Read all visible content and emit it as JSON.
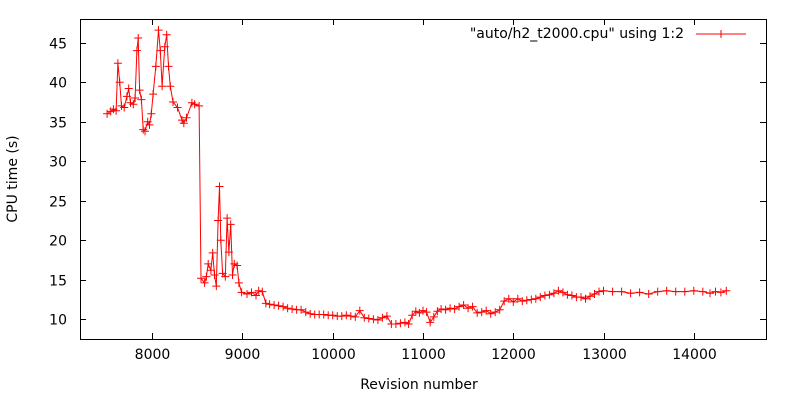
{
  "chart_data": {
    "type": "line",
    "title": "",
    "xlabel": "Revision number",
    "ylabel": "CPU time (s)",
    "xlim": [
      7200,
      14800
    ],
    "ylim": [
      7.5,
      48
    ],
    "xticks": [
      8000,
      9000,
      10000,
      11000,
      12000,
      13000,
      14000
    ],
    "yticks": [
      10,
      15,
      20,
      25,
      30,
      35,
      40,
      45
    ],
    "grid": false,
    "legend_position": "top-right",
    "line_color": "#ff0000",
    "series": [
      {
        "name": "\"auto/h2_t2000.cpu\" using 1:2",
        "marker": "plus",
        "points": [
          [
            7500,
            36.0
          ],
          [
            7540,
            36.3
          ],
          [
            7570,
            36.6
          ],
          [
            7600,
            36.4
          ],
          [
            7620,
            42.4
          ],
          [
            7640,
            40.0
          ],
          [
            7660,
            37.0
          ],
          [
            7690,
            36.8
          ],
          [
            7720,
            38.2
          ],
          [
            7740,
            39.2
          ],
          [
            7760,
            37.4
          ],
          [
            7790,
            37.2
          ],
          [
            7810,
            38.0
          ],
          [
            7830,
            44.0
          ],
          [
            7845,
            45.6
          ],
          [
            7860,
            39.0
          ],
          [
            7880,
            37.8
          ],
          [
            7900,
            34.0
          ],
          [
            7920,
            33.8
          ],
          [
            7950,
            35.0
          ],
          [
            7970,
            34.6
          ],
          [
            7990,
            36.0
          ],
          [
            8010,
            38.5
          ],
          [
            8040,
            42.0
          ],
          [
            8070,
            46.6
          ],
          [
            8090,
            44.0
          ],
          [
            8110,
            39.5
          ],
          [
            8140,
            44.5
          ],
          [
            8160,
            46.0
          ],
          [
            8180,
            42.0
          ],
          [
            8200,
            39.5
          ],
          [
            8230,
            37.5
          ],
          [
            8280,
            36.8
          ],
          [
            8330,
            35.2
          ],
          [
            8350,
            34.8
          ],
          [
            8380,
            35.5
          ],
          [
            8440,
            37.4
          ],
          [
            8470,
            37.2
          ],
          [
            8520,
            37.0
          ],
          [
            8540,
            15.2
          ],
          [
            8580,
            14.6
          ],
          [
            8600,
            15.4
          ],
          [
            8620,
            17.0
          ],
          [
            8650,
            16.2
          ],
          [
            8670,
            18.4
          ],
          [
            8690,
            15.6
          ],
          [
            8710,
            14.2
          ],
          [
            8730,
            22.5
          ],
          [
            8745,
            26.8
          ],
          [
            8760,
            20.0
          ],
          [
            8780,
            15.8
          ],
          [
            8810,
            15.4
          ],
          [
            8830,
            22.8
          ],
          [
            8850,
            18.5
          ],
          [
            8870,
            22.0
          ],
          [
            8890,
            15.6
          ],
          [
            8910,
            17.0
          ],
          [
            8940,
            16.8
          ],
          [
            8960,
            14.6
          ],
          [
            8990,
            13.4
          ],
          [
            9050,
            13.2
          ],
          [
            9100,
            13.4
          ],
          [
            9150,
            13.0
          ],
          [
            9180,
            13.6
          ],
          [
            9220,
            13.5
          ],
          [
            9260,
            12.0
          ],
          [
            9300,
            11.9
          ],
          [
            9350,
            11.8
          ],
          [
            9400,
            11.7
          ],
          [
            9450,
            11.6
          ],
          [
            9500,
            11.4
          ],
          [
            9550,
            11.3
          ],
          [
            9600,
            11.2
          ],
          [
            9650,
            11.2
          ],
          [
            9700,
            10.9
          ],
          [
            9750,
            10.7
          ],
          [
            9800,
            10.6
          ],
          [
            9850,
            10.6
          ],
          [
            9900,
            10.6
          ],
          [
            9950,
            10.5
          ],
          [
            10000,
            10.5
          ],
          [
            10050,
            10.4
          ],
          [
            10100,
            10.4
          ],
          [
            10150,
            10.5
          ],
          [
            10200,
            10.4
          ],
          [
            10250,
            10.3
          ],
          [
            10300,
            11.1
          ],
          [
            10350,
            10.2
          ],
          [
            10400,
            10.1
          ],
          [
            10450,
            10.0
          ],
          [
            10500,
            9.9
          ],
          [
            10550,
            10.2
          ],
          [
            10600,
            10.4
          ],
          [
            10650,
            9.4
          ],
          [
            10700,
            9.4
          ],
          [
            10750,
            9.5
          ],
          [
            10800,
            9.6
          ],
          [
            10840,
            9.4
          ],
          [
            10880,
            10.5
          ],
          [
            10920,
            11.0
          ],
          [
            10960,
            10.8
          ],
          [
            11000,
            11.1
          ],
          [
            11040,
            10.9
          ],
          [
            11080,
            9.6
          ],
          [
            11120,
            10.3
          ],
          [
            11160,
            11.0
          ],
          [
            11200,
            11.3
          ],
          [
            11250,
            11.2
          ],
          [
            11300,
            11.4
          ],
          [
            11350,
            11.3
          ],
          [
            11400,
            11.6
          ],
          [
            11450,
            11.8
          ],
          [
            11500,
            11.4
          ],
          [
            11550,
            11.6
          ],
          [
            11600,
            10.8
          ],
          [
            11650,
            10.9
          ],
          [
            11700,
            11.1
          ],
          [
            11750,
            10.7
          ],
          [
            11800,
            10.9
          ],
          [
            11850,
            11.2
          ],
          [
            11900,
            12.3
          ],
          [
            11950,
            12.6
          ],
          [
            12000,
            12.2
          ],
          [
            12050,
            12.6
          ],
          [
            12100,
            12.3
          ],
          [
            12150,
            12.4
          ],
          [
            12200,
            12.5
          ],
          [
            12250,
            12.6
          ],
          [
            12300,
            12.8
          ],
          [
            12350,
            13.0
          ],
          [
            12400,
            13.1
          ],
          [
            12450,
            13.3
          ],
          [
            12500,
            13.6
          ],
          [
            12550,
            13.4
          ],
          [
            12600,
            13.1
          ],
          [
            12650,
            13.0
          ],
          [
            12700,
            12.8
          ],
          [
            12750,
            12.8
          ],
          [
            12800,
            12.6
          ],
          [
            12850,
            12.9
          ],
          [
            12900,
            13.2
          ],
          [
            12950,
            13.5
          ],
          [
            13000,
            13.6
          ],
          [
            13100,
            13.5
          ],
          [
            13200,
            13.5
          ],
          [
            13300,
            13.3
          ],
          [
            13400,
            13.4
          ],
          [
            13500,
            13.2
          ],
          [
            13600,
            13.5
          ],
          [
            13700,
            13.6
          ],
          [
            13800,
            13.5
          ],
          [
            13900,
            13.5
          ],
          [
            14000,
            13.6
          ],
          [
            14100,
            13.5
          ],
          [
            14180,
            13.3
          ],
          [
            14240,
            13.5
          ],
          [
            14300,
            13.4
          ],
          [
            14360,
            13.6
          ]
        ]
      }
    ]
  }
}
